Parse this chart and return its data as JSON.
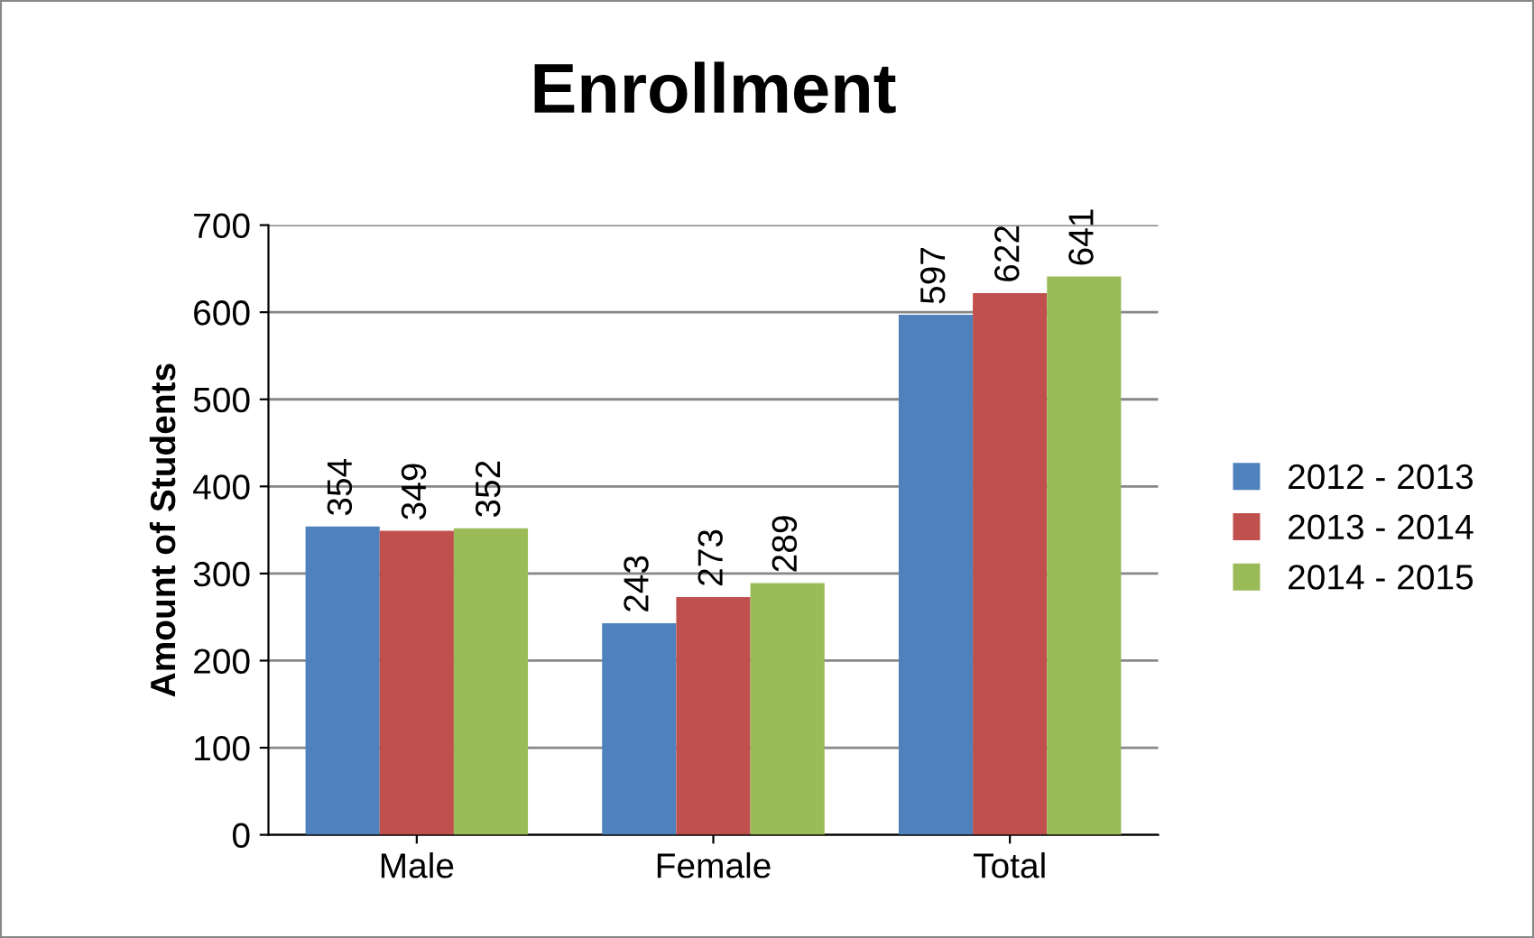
{
  "chart_data": {
    "type": "bar",
    "title": "Enrollment",
    "ylabel": "Amount of Students",
    "categories": [
      "Male",
      "Female",
      "Total"
    ],
    "series": [
      {
        "name": "2012 - 2013",
        "color": "#4f81bd",
        "values": [
          354,
          243,
          597
        ]
      },
      {
        "name": "2013 - 2014",
        "color": "#c0504d",
        "values": [
          349,
          273,
          622
        ]
      },
      {
        "name": "2014 - 2015",
        "color": "#9bbb59",
        "values": [
          352,
          289,
          641
        ]
      }
    ],
    "ylim": [
      0,
      700
    ],
    "yticks": [
      0,
      100,
      200,
      300,
      400,
      500,
      600,
      700
    ],
    "grid": "y",
    "legend": "right",
    "data_labels": true
  }
}
